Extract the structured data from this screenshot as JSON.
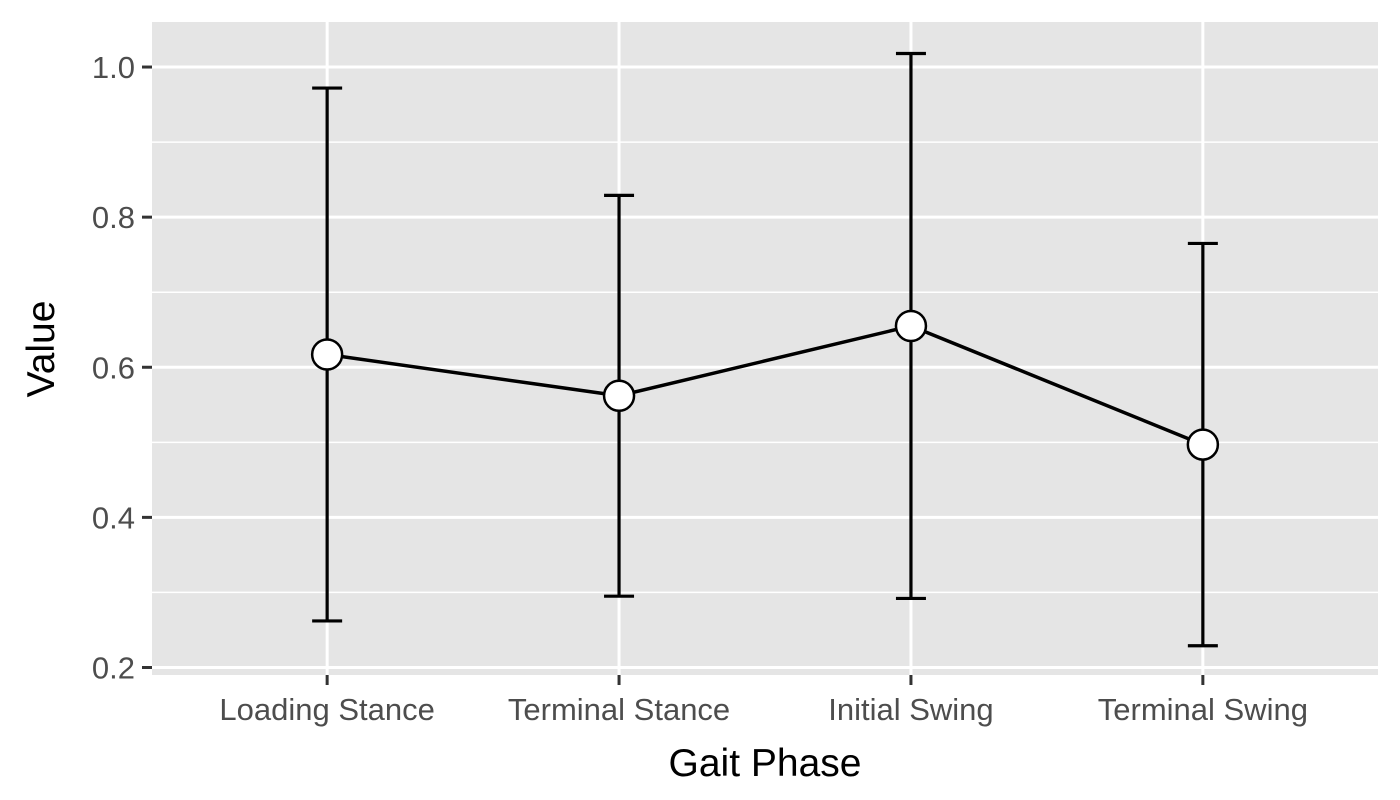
{
  "chart_data": {
    "type": "line",
    "title": "",
    "xlabel": "Gait Phase",
    "ylabel": "Value",
    "categories": [
      "Loading Stance",
      "Terminal Stance",
      "Initial Swing",
      "Terminal Swing"
    ],
    "series": [
      {
        "values": [
          0.617,
          0.562,
          0.655,
          0.497
        ],
        "error_lower": [
          0.262,
          0.295,
          0.292,
          0.229
        ],
        "error_upper": [
          0.972,
          0.829,
          1.018,
          0.765
        ]
      }
    ],
    "ylim": [
      0.19,
      1.06
    ],
    "yticks": [
      0.2,
      0.4,
      0.6,
      0.8,
      1.0
    ],
    "ytick_labels": [
      "0.2",
      "0.4",
      "0.6",
      "0.8",
      "1.0"
    ],
    "grid": true,
    "legend": "none",
    "colors": {
      "panel_background": "#e5e5e5",
      "grid": "#ffffff",
      "line": "#000000",
      "marker_fill": "#ffffff",
      "tick_text": "#4d4d4d",
      "axis_text": "#000000"
    }
  }
}
